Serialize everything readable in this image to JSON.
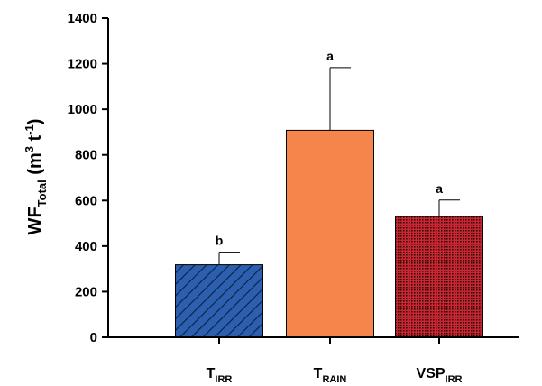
{
  "chart_data": {
    "type": "bar",
    "ylabel": {
      "main": "WF",
      "sub": "Total",
      "unit_open": " (m",
      "unit_sup1": "3",
      "unit_mid": " t",
      "unit_sup2": "-1",
      "unit_close": ")"
    },
    "ylim": [
      0,
      1400
    ],
    "yticks": [
      0,
      200,
      400,
      600,
      800,
      1000,
      1200,
      1400
    ],
    "grid": false,
    "bars": [
      {
        "label": "T",
        "sub": "IRR",
        "value": 318,
        "error": 55,
        "significance": "b",
        "color": "#2c5fae",
        "pattern": "hatch"
      },
      {
        "label": "T",
        "sub": "RAIN",
        "value": 908,
        "error": 275,
        "significance": "a",
        "color": "#f5854a",
        "pattern": "solid"
      },
      {
        "label": "VSP",
        "sub": "IRR",
        "value": 530,
        "error": 72,
        "significance": "a",
        "color": "#b51f2a",
        "pattern": "dots"
      }
    ]
  }
}
